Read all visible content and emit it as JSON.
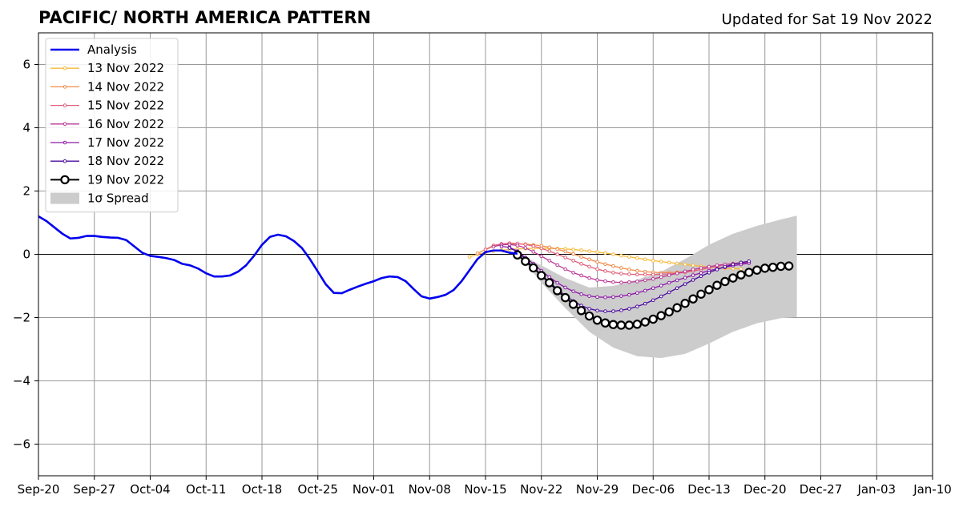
{
  "chart_data": {
    "type": "line",
    "title": "PACIFIC/ NORTH AMERICA PATTERN",
    "subtitle": "Updated for Sat 19 Nov 2022",
    "xlabel": "",
    "ylabel": "",
    "x_ticks": [
      "Sep-20",
      "Sep-27",
      "Oct-04",
      "Oct-11",
      "Oct-18",
      "Oct-25",
      "Nov-01",
      "Nov-08",
      "Nov-15",
      "Nov-22",
      "Nov-29",
      "Dec-06",
      "Dec-13",
      "Dec-20",
      "Dec-27",
      "Jan-03",
      "Jan-10"
    ],
    "y_ticks": [
      6,
      4,
      2,
      0,
      -2,
      -4,
      -6
    ],
    "y_tick_labels": [
      "6",
      "4",
      "2",
      "0",
      "−2",
      "−4",
      "−6"
    ],
    "ylim": [
      -7,
      7
    ],
    "xlim": [
      "2022-09-20",
      "2023-01-10"
    ],
    "grid": true,
    "legend_position": "top-left",
    "legend_spread_label": "1σ Spread",
    "analysis": {
      "name": "Analysis",
      "color": "#0000ee",
      "x": [
        "2022-09-20",
        "2022-09-21",
        "2022-09-22",
        "2022-09-23",
        "2022-09-24",
        "2022-09-25",
        "2022-09-26",
        "2022-09-27",
        "2022-09-28",
        "2022-09-29",
        "2022-09-30",
        "2022-10-01",
        "2022-10-02",
        "2022-10-03",
        "2022-10-04",
        "2022-10-05",
        "2022-10-06",
        "2022-10-07",
        "2022-10-08",
        "2022-10-09",
        "2022-10-10",
        "2022-10-11",
        "2022-10-12",
        "2022-10-13",
        "2022-10-14",
        "2022-10-15",
        "2022-10-16",
        "2022-10-17",
        "2022-10-18",
        "2022-10-19",
        "2022-10-20",
        "2022-10-21",
        "2022-10-22",
        "2022-10-23",
        "2022-10-24",
        "2022-10-25",
        "2022-10-26",
        "2022-10-27",
        "2022-10-28",
        "2022-10-29",
        "2022-10-30",
        "2022-10-31",
        "2022-11-01",
        "2022-11-02",
        "2022-11-03",
        "2022-11-04",
        "2022-11-05",
        "2022-11-06",
        "2022-11-07",
        "2022-11-08",
        "2022-11-09",
        "2022-11-10",
        "2022-11-11",
        "2022-11-12",
        "2022-11-13",
        "2022-11-14",
        "2022-11-15",
        "2022-11-16",
        "2022-11-17",
        "2022-11-18",
        "2022-11-19"
      ],
      "y": [
        1.2,
        1.05,
        0.85,
        0.65,
        0.5,
        0.52,
        0.58,
        0.58,
        0.55,
        0.53,
        0.52,
        0.45,
        0.25,
        0.05,
        -0.05,
        -0.08,
        -0.12,
        -0.18,
        -0.3,
        -0.35,
        -0.45,
        -0.6,
        -0.7,
        -0.7,
        -0.67,
        -0.55,
        -0.35,
        -0.05,
        0.3,
        0.55,
        0.62,
        0.57,
        0.42,
        0.2,
        -0.15,
        -0.55,
        -0.95,
        -1.22,
        -1.23,
        -1.12,
        -1.02,
        -0.93,
        -0.85,
        -0.75,
        -0.7,
        -0.72,
        -0.85,
        -1.1,
        -1.33,
        -1.4,
        -1.35,
        -1.28,
        -1.13,
        -0.85,
        -0.5,
        -0.15,
        0.07,
        0.12,
        0.12,
        0.05,
        0.02
      ]
    },
    "forecasts": [
      {
        "name": "13 Nov 2022",
        "color": "#f6b93b",
        "start": "2022-11-13",
        "y": [
          -0.08,
          0.0,
          0.06,
          0.1,
          0.13,
          0.15,
          0.17,
          0.18,
          0.19,
          0.19,
          0.19,
          0.18,
          0.17,
          0.15,
          0.13,
          0.1,
          0.07,
          0.04,
          0.0,
          -0.04,
          -0.08,
          -0.12,
          -0.16,
          -0.2,
          -0.23,
          -0.26,
          -0.29,
          -0.32,
          -0.35,
          -0.38,
          -0.4,
          -0.42,
          -0.44,
          -0.45,
          -0.46
        ]
      },
      {
        "name": "14 Nov 2022",
        "color": "#f08b4a",
        "start": "2022-11-14",
        "y": [
          0.03,
          0.15,
          0.25,
          0.3,
          0.32,
          0.33,
          0.32,
          0.3,
          0.27,
          0.22,
          0.16,
          0.09,
          0.01,
          -0.08,
          -0.16,
          -0.24,
          -0.31,
          -0.37,
          -0.43,
          -0.48,
          -0.52,
          -0.55,
          -0.57,
          -0.58,
          -0.58,
          -0.57,
          -0.55,
          -0.52,
          -0.48,
          -0.43,
          -0.38,
          -0.33,
          -0.29,
          -0.26,
          -0.24
        ]
      },
      {
        "name": "15 Nov 2022",
        "color": "#e0617a",
        "start": "2022-11-15",
        "y": [
          0.15,
          0.28,
          0.33,
          0.35,
          0.34,
          0.31,
          0.26,
          0.19,
          0.1,
          0.0,
          -0.1,
          -0.2,
          -0.3,
          -0.39,
          -0.47,
          -0.53,
          -0.58,
          -0.61,
          -0.63,
          -0.64,
          -0.64,
          -0.64,
          -0.63,
          -0.62,
          -0.6,
          -0.57,
          -0.53,
          -0.48,
          -0.43,
          -0.38,
          -0.33,
          -0.3,
          -0.28,
          -0.28
        ]
      },
      {
        "name": "16 Nov 2022",
        "color": "#b93a96",
        "start": "2022-11-16",
        "y": [
          0.24,
          0.3,
          0.31,
          0.28,
          0.2,
          0.08,
          -0.06,
          -0.2,
          -0.34,
          -0.47,
          -0.58,
          -0.67,
          -0.75,
          -0.81,
          -0.85,
          -0.88,
          -0.89,
          -0.88,
          -0.86,
          -0.82,
          -0.78,
          -0.72,
          -0.66,
          -0.6,
          -0.54,
          -0.48,
          -0.43,
          -0.39,
          -0.35,
          -0.32,
          -0.3,
          -0.28,
          -0.27
        ]
      },
      {
        "name": "17 Nov 2022",
        "color": "#8b1aa6",
        "start": "2022-11-17",
        "y": [
          0.25,
          0.22,
          0.1,
          -0.1,
          -0.3,
          -0.52,
          -0.72,
          -0.9,
          -1.05,
          -1.17,
          -1.26,
          -1.32,
          -1.35,
          -1.36,
          -1.35,
          -1.32,
          -1.28,
          -1.22,
          -1.15,
          -1.07,
          -0.99,
          -0.9,
          -0.82,
          -0.74,
          -0.66,
          -0.59,
          -0.52,
          -0.46,
          -0.41,
          -0.36,
          -0.32,
          -0.28
        ]
      },
      {
        "name": "18 Nov 2022",
        "color": "#4b0c9e",
        "start": "2022-11-18",
        "y": [
          0.2,
          0.08,
          -0.15,
          -0.4,
          -0.65,
          -0.88,
          -1.1,
          -1.3,
          -1.48,
          -1.62,
          -1.72,
          -1.78,
          -1.8,
          -1.8,
          -1.77,
          -1.72,
          -1.65,
          -1.56,
          -1.45,
          -1.33,
          -1.2,
          -1.07,
          -0.94,
          -0.81,
          -0.69,
          -0.58,
          -0.48,
          -0.39,
          -0.32,
          -0.26,
          -0.22
        ]
      },
      {
        "name": "19 Nov 2022",
        "color": "#000000",
        "start": "2022-11-19",
        "markers": "open-circle",
        "y": [
          -0.02,
          -0.22,
          -0.43,
          -0.67,
          -0.9,
          -1.15,
          -1.37,
          -1.58,
          -1.78,
          -1.95,
          -2.08,
          -2.17,
          -2.22,
          -2.24,
          -2.24,
          -2.21,
          -2.14,
          -2.05,
          -1.94,
          -1.82,
          -1.69,
          -1.55,
          -1.41,
          -1.26,
          -1.12,
          -0.98,
          -0.86,
          -0.75,
          -0.65,
          -0.57,
          -0.5,
          -0.44,
          -0.41,
          -0.38,
          -0.37
        ]
      }
    ],
    "spread": {
      "name": "1σ Spread",
      "color": "#cccccc",
      "x": [
        "2022-11-19",
        "2022-11-22",
        "2022-11-25",
        "2022-11-28",
        "2022-12-01",
        "2022-12-04",
        "2022-12-07",
        "2022-12-10",
        "2022-12-13",
        "2022-12-16",
        "2022-12-19",
        "2022-12-22",
        "2022-12-24"
      ],
      "upper": [
        0.05,
        -0.35,
        -0.75,
        -1.05,
        -1.0,
        -0.8,
        -0.55,
        -0.15,
        0.3,
        0.65,
        0.9,
        1.1,
        1.22
      ],
      "lower": [
        0.05,
        -0.9,
        -1.7,
        -2.45,
        -2.95,
        -3.22,
        -3.28,
        -3.15,
        -2.82,
        -2.45,
        -2.18,
        -2.02,
        -1.98
      ]
    }
  }
}
